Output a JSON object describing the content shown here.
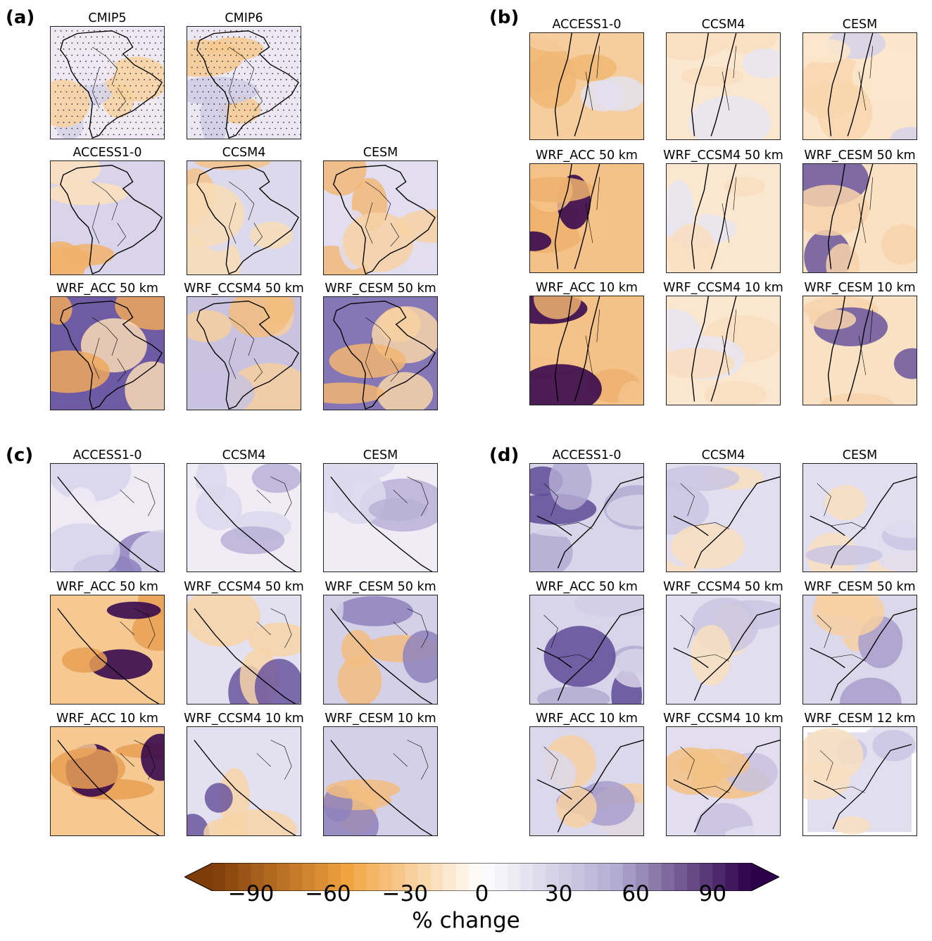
{
  "figure": {
    "panels": [
      {
        "letter": "(a)",
        "maps": [
          {
            "title": "CMIP5",
            "region": "sa",
            "stipple": true,
            "palette": "warm_north"
          },
          {
            "title": "CMIP6",
            "region": "sa",
            "stipple": true,
            "palette": "warm_north2"
          },
          {
            "title": "ACCESS1-0",
            "region": "sa",
            "palette": "mixed_a"
          },
          {
            "title": "CCSM4",
            "region": "sa",
            "palette": "mixed_b"
          },
          {
            "title": "CESM",
            "region": "sa",
            "palette": "mixed_c"
          },
          {
            "title": "WRF_ACC 50 km",
            "region": "sa",
            "palette": "wrf_a"
          },
          {
            "title": "WRF_CCSM4 50 km",
            "region": "sa",
            "palette": "wrf_b"
          },
          {
            "title": "WRF_CESM 50 km",
            "region": "sa",
            "palette": "wrf_c"
          }
        ]
      },
      {
        "letter": "(b)",
        "maps": [
          {
            "title": "ACCESS1-0",
            "region": "chile",
            "palette": "chile_dry"
          },
          {
            "title": "CCSM4",
            "region": "chile",
            "palette": "chile_light"
          },
          {
            "title": "CESM",
            "region": "chile",
            "palette": "chile_light2"
          },
          {
            "title": "WRF_ACC 50 km",
            "region": "chile",
            "palette": "chile_purple"
          },
          {
            "title": "WRF_CCSM4 50 km",
            "region": "chile",
            "palette": "chile_light"
          },
          {
            "title": "WRF_CESM 50 km",
            "region": "chile",
            "palette": "chile_purple2"
          },
          {
            "title": "WRF_ACC 10 km",
            "region": "chile",
            "palette": "chile_purple"
          },
          {
            "title": "WRF_CCSM4 10 km",
            "region": "chile",
            "palette": "chile_light"
          },
          {
            "title": "WRF_CESM 10 km",
            "region": "chile",
            "palette": "chile_purple2"
          }
        ]
      },
      {
        "letter": "(c)",
        "maps": [
          {
            "title": "ACCESS1-0",
            "region": "peru",
            "palette": "peru_gcm"
          },
          {
            "title": "CCSM4",
            "region": "peru",
            "palette": "peru_gcm2"
          },
          {
            "title": "CESM",
            "region": "peru",
            "palette": "peru_gcm2"
          },
          {
            "title": "WRF_ACC 50 km",
            "region": "peru",
            "palette": "peru_wrf_a"
          },
          {
            "title": "WRF_CCSM4 50 km",
            "region": "peru",
            "palette": "peru_wrf_b"
          },
          {
            "title": "WRF_CESM 50 km",
            "region": "peru",
            "palette": "peru_wrf_c"
          },
          {
            "title": "WRF_ACC 10 km",
            "region": "peru",
            "palette": "peru_wrf_a"
          },
          {
            "title": "WRF_CCSM4 10 km",
            "region": "peru",
            "palette": "peru_wrf_b"
          },
          {
            "title": "WRF_CESM 10 km",
            "region": "peru",
            "palette": "peru_wrf_c"
          }
        ]
      },
      {
        "letter": "(d)",
        "maps": [
          {
            "title": "ACCESS1-0",
            "region": "plata",
            "palette": "plata_purple"
          },
          {
            "title": "CCSM4",
            "region": "plata",
            "palette": "plata_light"
          },
          {
            "title": "CESM",
            "region": "plata",
            "palette": "plata_light"
          },
          {
            "title": "WRF_ACC 50 km",
            "region": "plata",
            "palette": "plata_purple"
          },
          {
            "title": "WRF_CCSM4 50 km",
            "region": "plata",
            "palette": "plata_light"
          },
          {
            "title": "WRF_CESM 50 km",
            "region": "plata",
            "palette": "plata_light2"
          },
          {
            "title": "WRF_ACC 10 km",
            "region": "plata",
            "palette": "plata_light2"
          },
          {
            "title": "WRF_CCSM4 10 km",
            "region": "plata",
            "palette": "plata_mixed"
          },
          {
            "title": "WRF_CESM 12 km",
            "region": "plata",
            "palette": "plata_light",
            "skewed": true
          }
        ]
      }
    ]
  },
  "colorbar": {
    "label": "% change",
    "ticks": [
      "−90",
      "−60",
      "−30",
      "0",
      "30",
      "60",
      "90"
    ],
    "tick_values": [
      -90,
      -60,
      -30,
      0,
      30,
      60,
      90
    ],
    "range": [
      -105,
      105
    ],
    "extend": "both",
    "colors": {
      "min": "#7f3b08",
      "mid_warm": "#f1a340",
      "zero": "#ffffff",
      "mid_cool": "#b2abd2",
      "max": "#2d004b"
    }
  }
}
